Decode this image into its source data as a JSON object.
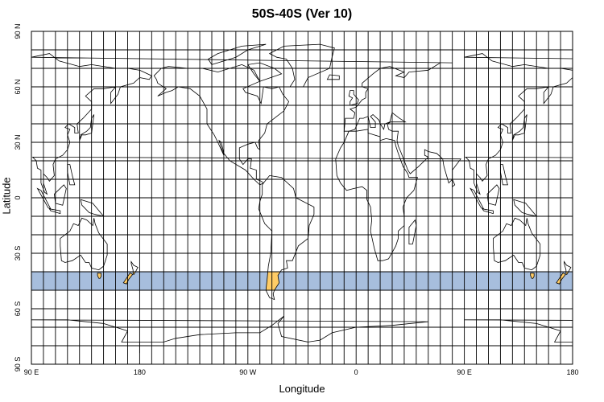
{
  "title": "50S-40S (Ver 10)",
  "xlabel": "Longitude",
  "ylabel": "Latitude",
  "lon_ticks": [
    "90 E",
    "180",
    "90 W",
    "0",
    "90 E",
    "180"
  ],
  "lat_ticks": [
    "90 N",
    "60 N",
    "30 N",
    "0",
    "30 S",
    "60 S",
    "90 S"
  ],
  "lon_range": [
    90,
    540
  ],
  "lat_range": [
    -90,
    90
  ],
  "grid_spacing_deg": 10,
  "highlight_band": {
    "lat_min": -50,
    "lat_max": -40
  },
  "colors": {
    "band": "#a7bedd",
    "land_in_band": "#ffcc66",
    "coast": "#000000",
    "grid": "#000000"
  }
}
